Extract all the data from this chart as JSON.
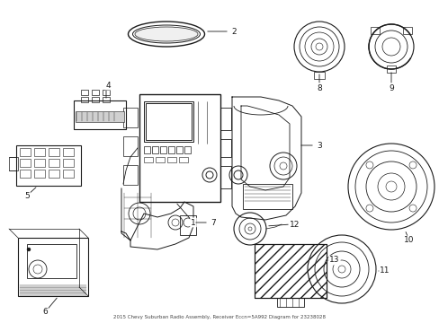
{
  "title": "2015 Chevy Suburban Radio Assembly, Receiver Eccn=5A992 Diagram for 23238028",
  "background_color": "#ffffff",
  "line_color": "#1a1a1a",
  "lw": 0.7,
  "figsize": [
    4.89,
    3.6
  ],
  "dpi": 100
}
